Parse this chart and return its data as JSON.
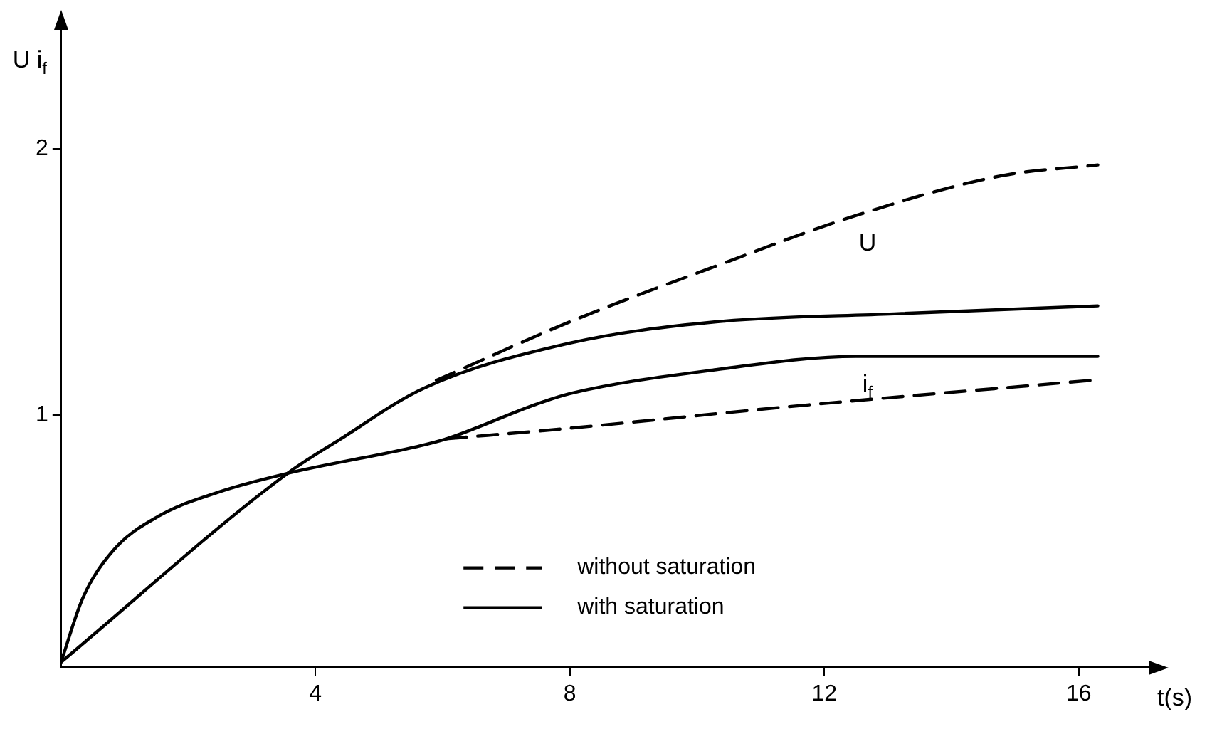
{
  "chart_data": {
    "type": "line",
    "xlabel": "t(s)",
    "ylabel": "U i$_{f}$",
    "xlim": [
      0,
      17.1
    ],
    "ylim": [
      0.05,
      2.45
    ],
    "xticks": [
      4,
      8,
      12,
      16
    ],
    "yticks": [
      1,
      2
    ],
    "grid": false,
    "legend": "bottom",
    "marker": "none",
    "series": [
      {
        "name": "without saturation",
        "color": "#000000",
        "line_style": "dashed",
        "x": [
          5.9,
          8,
          10.3,
          12.5,
          14.8,
          16.3
        ],
        "values": [
          1.13,
          1.35,
          1.56,
          1.75,
          1.9,
          1.94
        ]
      },
      {
        "color": "#000000",
        "line_style": "dashed",
        "x": [
          6.06,
          8,
          11.4,
          16.2
        ],
        "values": [
          0.91,
          0.95,
          1.03,
          1.13
        ]
      },
      {
        "name": "with saturation",
        "color": "#000000",
        "line_style": "solid",
        "x": [
          0,
          3.56,
          4.4,
          5.7,
          8,
          10.3,
          13.1,
          16.3
        ],
        "values": [
          0.07,
          0.78,
          0.91,
          1.1,
          1.27,
          1.35,
          1.38,
          1.41
        ]
      },
      {
        "color": "#000000",
        "line_style": "solid",
        "x": [
          0,
          0.34,
          0.82,
          1.54,
          2.48,
          3.56,
          5.58,
          6.06,
          7.47,
          8,
          10.3,
          12.5,
          16.3
        ],
        "values": [
          0.07,
          0.31,
          0.49,
          0.62,
          0.71,
          0.78,
          0.88,
          0.91,
          1.04,
          1.08,
          1.17,
          1.22,
          1.22
        ]
      }
    ],
    "annotations": [
      {
        "text": "U",
        "x": 12.5,
        "y": 1.75
      },
      {
        "text": "i$_{f}$",
        "x": 12.5,
        "y": 1.22
      }
    ]
  }
}
